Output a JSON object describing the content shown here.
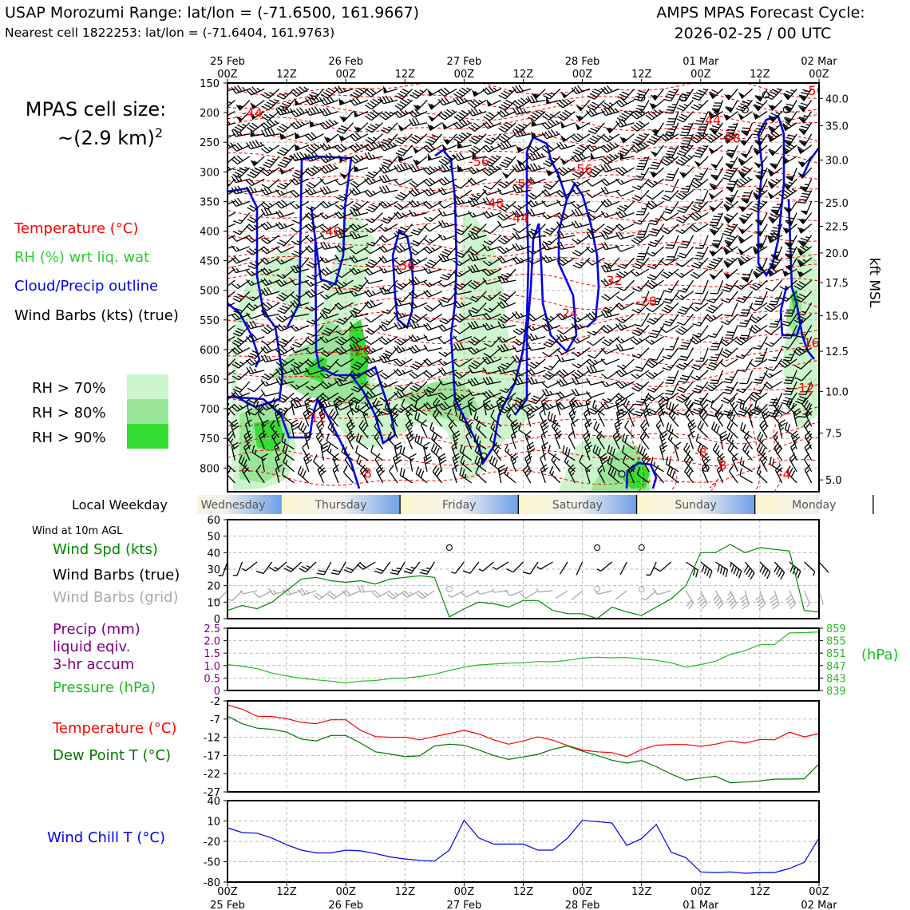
{
  "header": {
    "title_left": "USAP Morozumi Range: lat/lon = (-71.6500, 161.9667)",
    "subtitle_left": "Nearest cell 1822253: lat/lon = (-71.6404, 161.9763)",
    "title_right_1": "AMPS MPAS Forecast Cycle:",
    "title_right_2": "2026-02-25 / 00 UTC"
  },
  "legend": {
    "cell_size_1": "MPAS cell size:",
    "cell_size_2": "~(2.9 km)",
    "cell_size_sup": "2",
    "temperature": "Temperature (°C)",
    "rh": "RH (%) wrt liq. wat",
    "cloud": "Cloud/Precip outline",
    "wind": "Wind Barbs (kts) (true)",
    "rh70": "RH > 70%",
    "rh80": "RH > 80%",
    "rh90": "RH > 90%",
    "weekday_title": "Local Weekday",
    "wind10_title": "Wind at 10m AGL",
    "wind_spd": "Wind Spd (kts)",
    "wind_barbs_true": "Wind Barbs (true)",
    "wind_barbs_grid": "Wind Barbs (grid)",
    "precip_1": "Precip (mm)",
    "precip_2": "liquid eqiv.",
    "precip_3": "3-hr accum",
    "pressure": "Pressure (hPa)",
    "hpa_unit": "(hPa)",
    "temp2": "Temperature (°C)",
    "dew": "Dew Point T (°C)",
    "windchill": "Wind Chill T (°C)",
    "kft": "kft MSL"
  },
  "colors": {
    "temperature": "#ff0000",
    "rh_label": "#33cc33",
    "cloud": "#0000ee",
    "windspeed": "#008800",
    "precip": "#800080",
    "pressure": "#22bb22",
    "dewpoint": "#007700",
    "windchill": "#0000ee",
    "rh70": "#ccf5cc",
    "rh80": "#99e699",
    "rh90": "#33dd33"
  },
  "time_axis": {
    "top_days": [
      "25 Feb",
      "26 Feb",
      "27 Feb",
      "28 Feb",
      "01 Mar",
      "02 Mar"
    ],
    "hours": [
      "00Z",
      "12Z",
      "00Z",
      "12Z",
      "00Z",
      "12Z",
      "00Z",
      "12Z",
      "00Z",
      "12Z",
      "00Z"
    ],
    "bottom_days": [
      "25 Feb",
      "26 Feb",
      "27 Feb",
      "28 Feb",
      "01 Mar",
      "02 Mar"
    ]
  },
  "weekdays": [
    "Wednesday",
    "Thursday",
    "Friday",
    "Saturday",
    "Sunday",
    "Monday"
  ],
  "chart_data": [
    {
      "type": "heatmap",
      "panel": "cross-section",
      "x_unit": "forecast hour",
      "xlim": [
        0,
        120
      ],
      "y_left_ticks": [
        150,
        200,
        250,
        300,
        350,
        400,
        450,
        500,
        550,
        600,
        650,
        700,
        750,
        800
      ],
      "y_left_unit": "hPa",
      "ylim": [
        150,
        840
      ],
      "y_right_ticks": [
        "40.0",
        "35.0",
        "30.0",
        "25.0",
        "22.5",
        "20.0",
        "17.5",
        "15.0",
        "12.5",
        "10.0",
        "7.5",
        "5.0"
      ],
      "y_right_ticks_hpa": [
        176,
        222,
        280,
        352,
        392,
        437,
        487,
        543,
        603,
        671,
        741,
        820
      ],
      "temperature_labels": [
        {
          "text": "-44",
          "t": 5,
          "p": 200
        },
        {
          "text": "-44",
          "t": 98,
          "p": 212
        },
        {
          "text": "-48",
          "t": 102,
          "p": 242
        },
        {
          "text": "-56",
          "t": 51,
          "p": 282
        },
        {
          "text": "-56",
          "t": 72,
          "p": 295
        },
        {
          "text": "-52",
          "t": 60,
          "p": 320
        },
        {
          "text": "-48",
          "t": 54,
          "p": 352
        },
        {
          "text": "-44",
          "t": 59,
          "p": 377
        },
        {
          "text": "-40",
          "t": 21,
          "p": 400
        },
        {
          "text": "-36",
          "t": 36,
          "p": 457
        },
        {
          "text": "-32",
          "t": 78,
          "p": 483
        },
        {
          "text": "-28",
          "t": 85,
          "p": 518
        },
        {
          "text": "-24",
          "t": 69,
          "p": 538
        },
        {
          "text": "-20",
          "t": 27,
          "p": 600
        },
        {
          "text": "-16",
          "t": 118,
          "p": 588
        },
        {
          "text": "-12",
          "t": 18,
          "p": 715
        },
        {
          "text": "-12",
          "t": 117,
          "p": 664
        },
        {
          "text": "-8",
          "t": 28,
          "p": 808
        },
        {
          "text": "-8",
          "t": 96,
          "p": 773
        },
        {
          "text": "-8",
          "t": 100,
          "p": 795
        },
        {
          "text": "-4",
          "t": 113,
          "p": 810
        },
        {
          "text": "-56",
          "t": 119,
          "p": 162
        }
      ]
    },
    {
      "type": "line",
      "panel": "wind10",
      "ylim": [
        0,
        60
      ],
      "yticks": [
        0,
        10,
        20,
        30,
        40,
        50,
        60
      ],
      "x": [
        0,
        3,
        6,
        9,
        12,
        15,
        18,
        21,
        24,
        27,
        30,
        33,
        36,
        39,
        42,
        45,
        48,
        51,
        54,
        57,
        60,
        63,
        66,
        69,
        72,
        75,
        78,
        81,
        84,
        87,
        90,
        93,
        96,
        99,
        102,
        105,
        108,
        111,
        114,
        117,
        120
      ],
      "series": [
        {
          "values": [
            5,
            8,
            6,
            10,
            17,
            24,
            25,
            23,
            22,
            23,
            21,
            24,
            25,
            26,
            25,
            1,
            6,
            10,
            9,
            7,
            11,
            11,
            5,
            3,
            3,
            0,
            7,
            4,
            2,
            7,
            12,
            20,
            40,
            40,
            45,
            40,
            43,
            42,
            41,
            5,
            4
          ]
        }
      ]
    },
    {
      "type": "line",
      "panel": "precip-pressure",
      "y_left_ticks": [
        "2.5",
        "2.0",
        "1.5",
        "1.0",
        "0.5",
        "0"
      ],
      "y_left_lim": [
        0,
        2.5
      ],
      "y_right_ticks": [
        859,
        855,
        851,
        847,
        843,
        839
      ],
      "y_right_lim": [
        839,
        859
      ],
      "x": [
        0,
        3,
        6,
        9,
        12,
        15,
        18,
        21,
        24,
        27,
        30,
        33,
        36,
        39,
        42,
        45,
        48,
        51,
        54,
        57,
        60,
        63,
        66,
        69,
        72,
        75,
        78,
        81,
        84,
        87,
        90,
        93,
        96,
        99,
        102,
        105,
        108,
        111,
        114,
        117,
        120
      ],
      "series": [
        {
          "name": "Pressure (hPa)",
          "values": [
            847.3,
            846.8,
            846.0,
            844.6,
            843.7,
            842.9,
            842.4,
            842.0,
            841.4,
            842.0,
            842.2,
            842.8,
            843.0,
            843.5,
            844.2,
            845.4,
            846.5,
            847.2,
            847.5,
            847.8,
            847.9,
            848.3,
            848.2,
            848.7,
            849.4,
            849.7,
            849.5,
            849.6,
            849.1,
            848.7,
            847.9,
            846.5,
            847.3,
            848.4,
            850.6,
            851.8,
            853.7,
            853.8,
            857.5,
            857.6,
            857.8
          ]
        }
      ]
    },
    {
      "type": "line",
      "panel": "temperature-dewpoint",
      "ylim": [
        -27,
        -2
      ],
      "yticks": [
        -2,
        -7,
        -12,
        -17,
        -22,
        -27
      ],
      "x": [
        0,
        3,
        6,
        9,
        12,
        15,
        18,
        21,
        24,
        27,
        30,
        33,
        36,
        39,
        42,
        45,
        48,
        51,
        54,
        57,
        60,
        63,
        66,
        69,
        72,
        75,
        78,
        81,
        84,
        87,
        90,
        93,
        96,
        99,
        102,
        105,
        108,
        111,
        114,
        117,
        120
      ],
      "series": [
        {
          "name": "Temperature (°C)",
          "values": [
            -3.1,
            -4.3,
            -6.2,
            -6.3,
            -6.9,
            -7.9,
            -8.3,
            -7.2,
            -7.2,
            -10.1,
            -11.8,
            -12.0,
            -12.0,
            -12.7,
            -11.8,
            -11.0,
            -10.1,
            -11.1,
            -12.7,
            -13.9,
            -13.0,
            -11.9,
            -12.8,
            -14.3,
            -15.5,
            -16.0,
            -16.2,
            -17.3,
            -15.4,
            -14.2,
            -14.0,
            -14.0,
            -14.5,
            -13.9,
            -13.0,
            -13.6,
            -12.6,
            -12.7,
            -10.6,
            -11.9,
            -11.0
          ]
        },
        {
          "name": "Dew Point T (°C)",
          "values": [
            -6.2,
            -8.3,
            -9.5,
            -9.8,
            -10.6,
            -12.5,
            -13.0,
            -11.5,
            -11.5,
            -13.6,
            -16.0,
            -16.6,
            -17.3,
            -17.1,
            -14.4,
            -13.9,
            -14.2,
            -15.5,
            -17.0,
            -18.1,
            -17.4,
            -16.7,
            -15.3,
            -14.4,
            -15.8,
            -17.0,
            -18.3,
            -19.1,
            -18.4,
            -20.1,
            -22.1,
            -23.8,
            -23.2,
            -22.7,
            -24.5,
            -24.3,
            -24.0,
            -23.5,
            -23.5,
            -23.4,
            -19.3
          ]
        }
      ]
    },
    {
      "type": "line",
      "panel": "windchill",
      "ylim": [
        -80,
        40
      ],
      "yticks": [
        40,
        10,
        -20,
        -50,
        -80
      ],
      "x": [
        0,
        3,
        6,
        9,
        12,
        15,
        18,
        21,
        24,
        27,
        30,
        33,
        36,
        39,
        42,
        45,
        48,
        51,
        54,
        57,
        60,
        63,
        66,
        69,
        72,
        75,
        78,
        81,
        84,
        87,
        90,
        93,
        96,
        99,
        102,
        105,
        108,
        111,
        114,
        117,
        120
      ],
      "series": [
        {
          "name": "Wind Chill T (°C)",
          "values": [
            0,
            -7,
            -8,
            -15,
            -25,
            -33,
            -37,
            -37,
            -33,
            -34,
            -38,
            -43,
            -46,
            -48,
            -49,
            -33,
            11,
            -15,
            -24,
            -24,
            -24,
            -33,
            -33,
            -15,
            11,
            9,
            7,
            -26,
            -16,
            5,
            -36,
            -44,
            -65,
            -66,
            -65,
            -67,
            -66,
            -66,
            -60,
            -51,
            -15
          ]
        }
      ]
    }
  ]
}
